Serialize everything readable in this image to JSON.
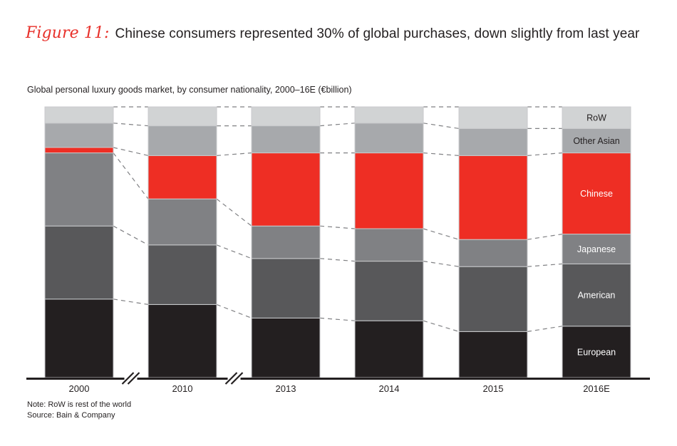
{
  "figure": {
    "label": "Figure 11:",
    "title": "Chinese consumers represented 30% of global purchases, down slightly from last year"
  },
  "chart_data": {
    "type": "bar",
    "stacked": true,
    "normalized": true,
    "title": "Chinese consumers represented 30% of global purchases, down slightly from last year",
    "subtitle": "Global personal luxury goods market, by consumer nationality, 2000–16E (€billion)",
    "xlabel": "",
    "ylabel": "",
    "ylim": [
      0,
      100
    ],
    "unit": "percent of total",
    "categories": [
      "2000",
      "2010",
      "2013",
      "2014",
      "2015",
      "2016E"
    ],
    "axis_breaks_after": [
      "2000",
      "2010"
    ],
    "series": [
      {
        "name": "European",
        "color": "#231f20",
        "label_color": "#ffffff",
        "values": [
          29,
          27,
          22,
          21,
          17,
          19
        ]
      },
      {
        "name": "American",
        "color": "#58585a",
        "label_color": "#ffffff",
        "values": [
          27,
          22,
          22,
          22,
          24,
          23
        ]
      },
      {
        "name": "Japanese",
        "color": "#808184",
        "label_color": "#ffffff",
        "values": [
          27,
          17,
          12,
          12,
          10,
          11
        ]
      },
      {
        "name": "Chinese",
        "color": "#ee2e24",
        "label_color": "#ffffff",
        "values": [
          2,
          16,
          27,
          28,
          31,
          30
        ]
      },
      {
        "name": "Other Asian",
        "color": "#a7a9ac",
        "label_color": "#231f20",
        "values": [
          9,
          11,
          10,
          11,
          10,
          9
        ]
      },
      {
        "name": "RoW",
        "color": "#d1d3d4",
        "label_color": "#231f20",
        "values": [
          6,
          7,
          7,
          6,
          8,
          8
        ]
      }
    ],
    "legend": "inline labels on last bar (2016E)",
    "grid": false,
    "connector_lines": "dashed lines linking segment boundaries between bars"
  },
  "notes": {
    "note": "Note: RoW is rest of the world",
    "source": "Source: Bain & Company"
  }
}
